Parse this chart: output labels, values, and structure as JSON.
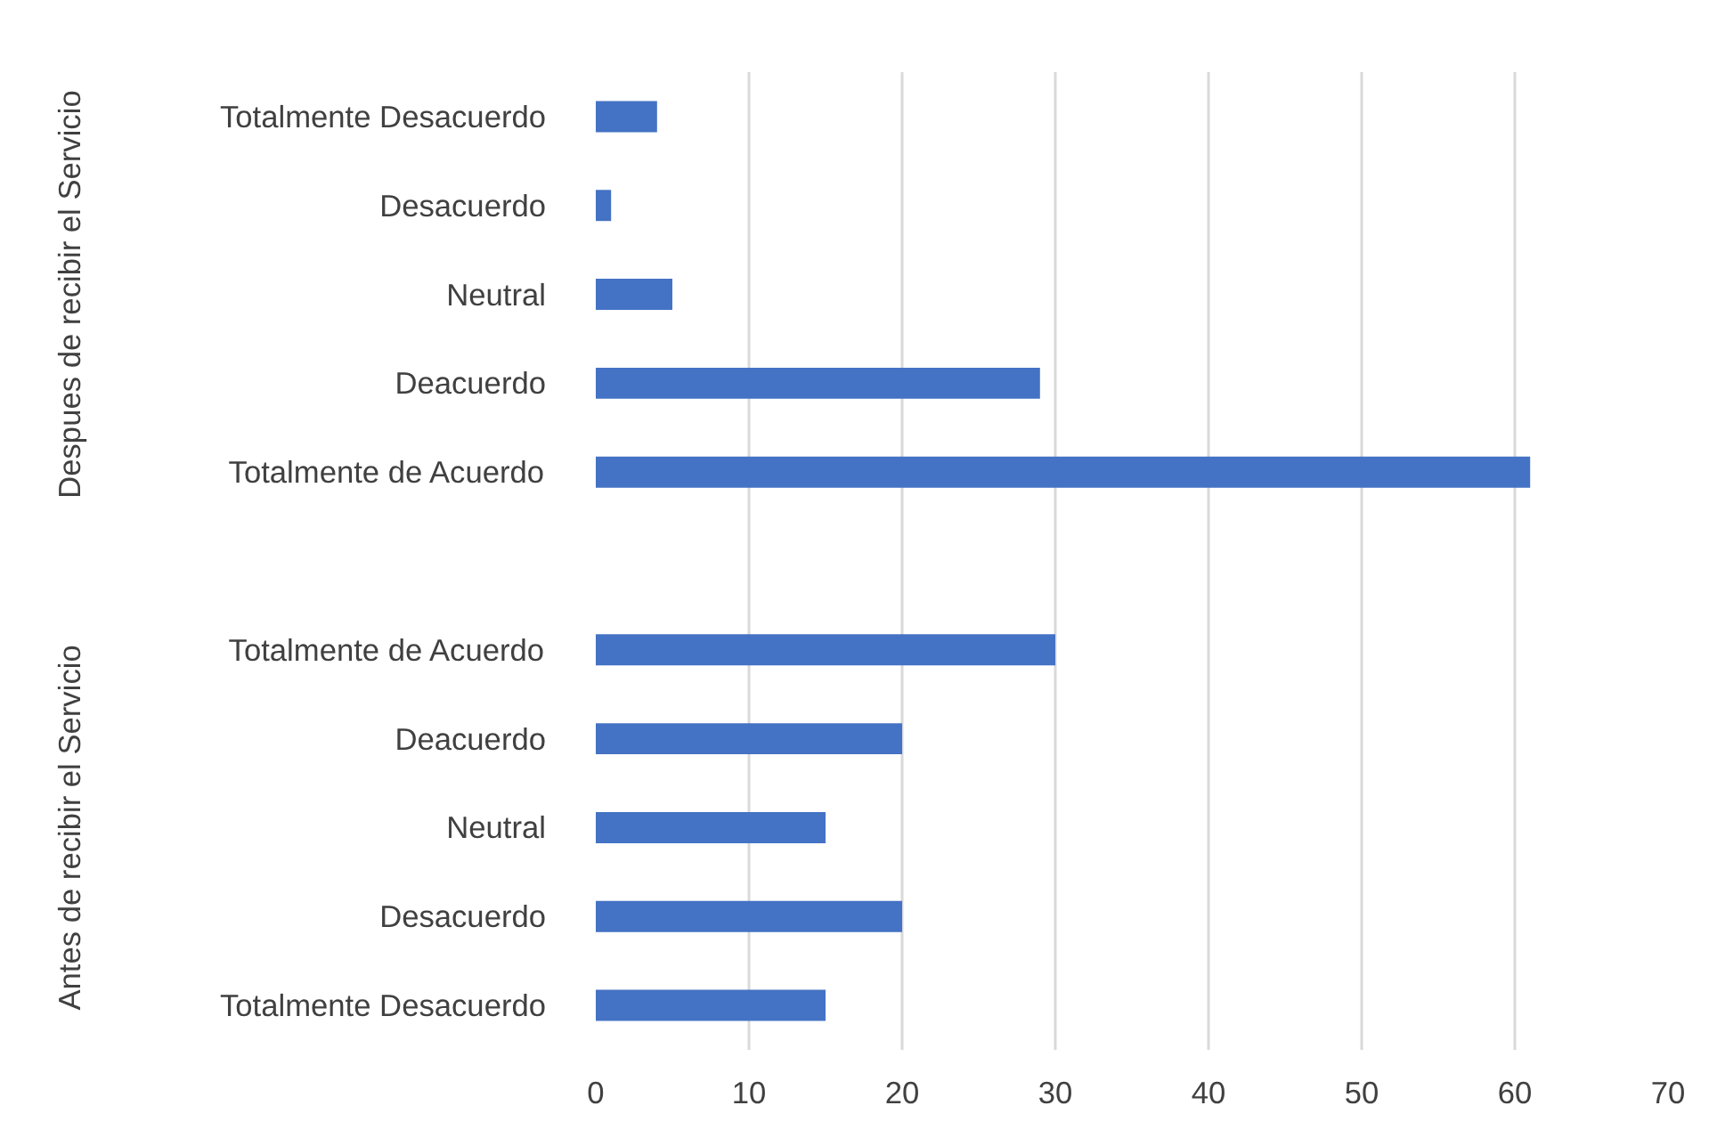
{
  "chart_data": {
    "type": "bar",
    "orientation": "horizontal",
    "categories": [
      "Totalmente Desacuerdo",
      "Desacuerdo",
      "Neutral",
      "Deacuerdo",
      "Totalmente de Acuerdo",
      null,
      "Totalmente de Acuerdo",
      "Deacuerdo",
      "Neutral",
      "Desacuerdo",
      "Totalmente Desacuerdo"
    ],
    "values": [
      4,
      1,
      5,
      29,
      61,
      null,
      30,
      20,
      15,
      20,
      15
    ],
    "color": "#4472c4",
    "xlim": [
      0,
      70
    ],
    "xticks": [
      0,
      10,
      20,
      30,
      40,
      50,
      60,
      70
    ],
    "grid": "x",
    "annotations": [
      "Despues de recibir el Servicio",
      "Antes de recibir el Servicio"
    ]
  }
}
